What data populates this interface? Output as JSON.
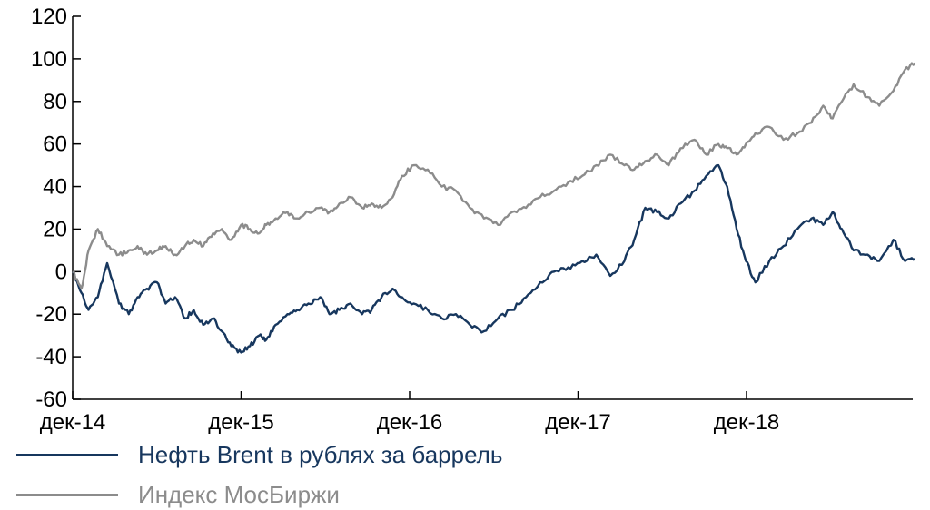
{
  "chart_data": {
    "type": "line",
    "title": "",
    "xlabel": "",
    "ylabel": "",
    "ylim": [
      -60,
      120
    ],
    "yticks": [
      120,
      100,
      80,
      60,
      40,
      20,
      0,
      -20,
      -40,
      -60
    ],
    "ytick_labels": [
      "120",
      "100",
      "80",
      "60",
      "40",
      "20",
      "0",
      "-20",
      "-40",
      "-60"
    ],
    "xlim": [
      "2014-12",
      "2019-12"
    ],
    "xticks": [
      "2014-12",
      "2015-12",
      "2016-12",
      "2017-12",
      "2018-12"
    ],
    "xtick_labels": [
      "дек-14",
      "дек-15",
      "дек-16",
      "дек-17",
      "дек-18"
    ],
    "grid": false,
    "legend_position": "bottom-left",
    "series": [
      {
        "name": "Нефть Brent в рублях за баррель",
        "color": "#17375e",
        "x": [
          "2014-12-01",
          "2014-12-20",
          "2015-01-05",
          "2015-01-25",
          "2015-02-15",
          "2015-03-10",
          "2015-04-01",
          "2015-04-20",
          "2015-05-10",
          "2015-06-01",
          "2015-06-20",
          "2015-07-10",
          "2015-08-01",
          "2015-08-20",
          "2015-09-10",
          "2015-10-01",
          "2015-10-20",
          "2015-11-10",
          "2015-12-01",
          "2015-12-20",
          "2016-01-10",
          "2016-01-25",
          "2016-02-15",
          "2016-03-10",
          "2016-04-01",
          "2016-04-25",
          "2016-05-20",
          "2016-06-10",
          "2016-07-01",
          "2016-07-25",
          "2016-08-20",
          "2016-09-10",
          "2016-10-01",
          "2016-10-25",
          "2016-11-15",
          "2016-12-10",
          "2017-01-10",
          "2017-02-10",
          "2017-03-10",
          "2017-04-10",
          "2017-05-10",
          "2017-06-10",
          "2017-07-10",
          "2017-08-10",
          "2017-09-10",
          "2017-10-10",
          "2017-11-10",
          "2017-12-10",
          "2018-01-10",
          "2018-02-10",
          "2018-03-10",
          "2018-04-01",
          "2018-04-25",
          "2018-05-20",
          "2018-06-15",
          "2018-07-10",
          "2018-08-10",
          "2018-09-05",
          "2018-10-01",
          "2018-10-20",
          "2018-11-10",
          "2018-11-30",
          "2018-12-20",
          "2019-01-20",
          "2019-02-20",
          "2019-03-20",
          "2019-04-20",
          "2019-05-15",
          "2019-06-05",
          "2019-06-25",
          "2019-07-20",
          "2019-08-20",
          "2019-09-15",
          "2019-10-15",
          "2019-11-10",
          "2019-12-01"
        ],
        "values": [
          0,
          -10,
          -18,
          -12,
          4,
          -15,
          -20,
          -12,
          -8,
          -5,
          -15,
          -12,
          -22,
          -18,
          -25,
          -22,
          -28,
          -35,
          -38,
          -35,
          -30,
          -32,
          -25,
          -20,
          -18,
          -15,
          -12,
          -20,
          -18,
          -15,
          -20,
          -18,
          -12,
          -8,
          -12,
          -15,
          -18,
          -22,
          -20,
          -25,
          -28,
          -22,
          -18,
          -12,
          -5,
          0,
          2,
          5,
          8,
          -2,
          5,
          15,
          30,
          28,
          25,
          32,
          38,
          45,
          50,
          40,
          20,
          5,
          -5,
          5,
          12,
          20,
          25,
          22,
          28,
          20,
          10,
          8,
          5,
          15,
          5,
          6
        ]
      },
      {
        "name": "Индекс МосБиржи",
        "color": "#8c8c8c",
        "x": [
          "2014-12-01",
          "2014-12-20",
          "2015-01-05",
          "2015-01-25",
          "2015-02-15",
          "2015-03-10",
          "2015-04-01",
          "2015-04-20",
          "2015-05-10",
          "2015-06-01",
          "2015-06-20",
          "2015-07-10",
          "2015-08-01",
          "2015-08-20",
          "2015-09-10",
          "2015-10-01",
          "2015-10-20",
          "2015-11-10",
          "2015-12-01",
          "2015-12-20",
          "2016-01-10",
          "2016-01-25",
          "2016-02-15",
          "2016-03-10",
          "2016-04-01",
          "2016-04-25",
          "2016-05-20",
          "2016-06-10",
          "2016-07-01",
          "2016-07-25",
          "2016-08-20",
          "2016-09-10",
          "2016-10-01",
          "2016-10-25",
          "2016-11-15",
          "2016-12-10",
          "2017-01-10",
          "2017-02-10",
          "2017-03-10",
          "2017-04-10",
          "2017-05-10",
          "2017-06-10",
          "2017-07-10",
          "2017-08-10",
          "2017-09-10",
          "2017-10-10",
          "2017-11-10",
          "2017-12-10",
          "2018-01-10",
          "2018-02-10",
          "2018-03-10",
          "2018-04-01",
          "2018-04-25",
          "2018-05-20",
          "2018-06-15",
          "2018-07-10",
          "2018-08-10",
          "2018-09-05",
          "2018-10-01",
          "2018-10-20",
          "2018-11-10",
          "2018-11-30",
          "2018-12-20",
          "2019-01-20",
          "2019-02-20",
          "2019-03-20",
          "2019-04-20",
          "2019-05-15",
          "2019-06-05",
          "2019-06-25",
          "2019-07-20",
          "2019-08-20",
          "2019-09-15",
          "2019-10-15",
          "2019-11-10",
          "2019-12-01"
        ],
        "values": [
          0,
          -8,
          10,
          20,
          12,
          8,
          10,
          12,
          8,
          10,
          12,
          8,
          12,
          15,
          12,
          18,
          20,
          15,
          22,
          20,
          18,
          22,
          25,
          28,
          25,
          28,
          30,
          28,
          32,
          35,
          30,
          32,
          30,
          35,
          45,
          50,
          48,
          40,
          38,
          30,
          25,
          22,
          28,
          30,
          35,
          38,
          42,
          45,
          50,
          55,
          50,
          48,
          52,
          55,
          50,
          58,
          62,
          55,
          60,
          58,
          55,
          60,
          65,
          68,
          62,
          65,
          70,
          78,
          72,
          80,
          88,
          82,
          78,
          85,
          95,
          98
        ]
      }
    ]
  }
}
